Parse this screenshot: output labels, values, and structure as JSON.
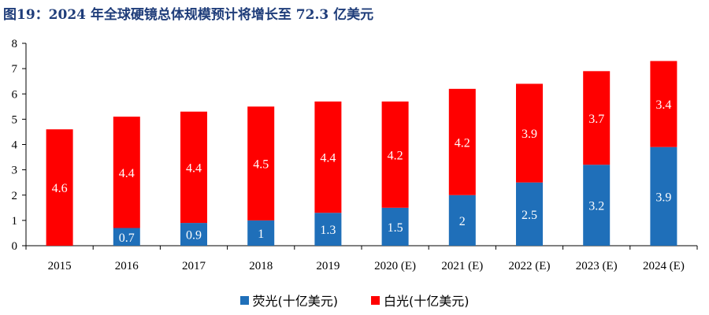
{
  "chart_data": {
    "type": "bar",
    "stacked": true,
    "title": "图19：2024 年全球硬镜总体规模预计将增长至 72.3 亿美元",
    "categories": [
      "2015",
      "2016",
      "2017",
      "2018",
      "2019",
      "2020 (E)",
      "2021 (E)",
      "2022 (E)",
      "2023 (E)",
      "2024 (E)"
    ],
    "series": [
      {
        "name": "荧光(十亿美元)",
        "color": "#1f6fb9",
        "values": [
          0,
          0.7,
          0.9,
          1,
          1.3,
          1.5,
          2,
          2.5,
          3.2,
          3.9
        ]
      },
      {
        "name": "白光(十亿美元)",
        "color": "#ff0000",
        "values": [
          4.6,
          4.4,
          4.4,
          4.5,
          4.4,
          4.2,
          4.2,
          3.9,
          3.7,
          3.4
        ]
      }
    ],
    "ylim": [
      0,
      8
    ],
    "yticks": [
      0,
      1,
      2,
      3,
      4,
      5,
      6,
      7,
      8
    ],
    "xlabel": "",
    "ylabel": "",
    "legend_position": "bottom",
    "grid": false
  }
}
